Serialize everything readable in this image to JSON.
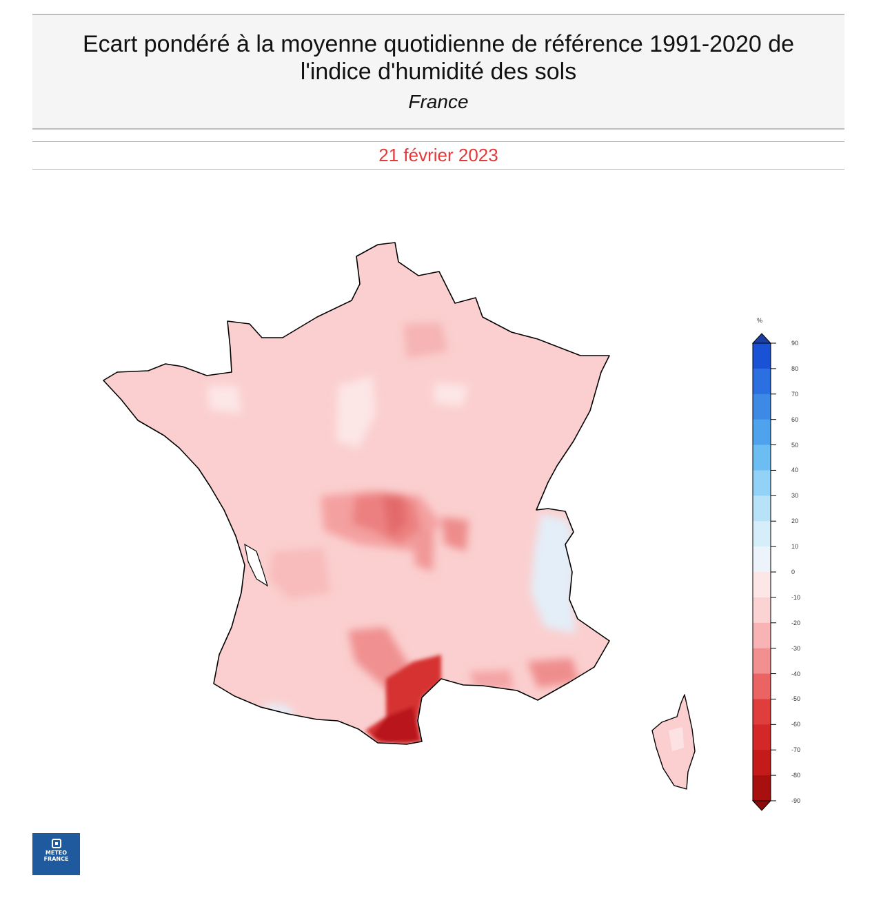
{
  "header": {
    "title": "Ecart pondéré à la moyenne quotidienne de référence 1991-2020 de l'indice d'humidité des sols",
    "region": "France"
  },
  "date": "21 février 2023",
  "legend": {
    "unit": "%",
    "ticks": [
      "90",
      "80",
      "70",
      "60",
      "50",
      "40",
      "30",
      "20",
      "10",
      "0",
      "-10",
      "-20",
      "-30",
      "-40",
      "-50",
      "-60",
      "-70",
      "-80",
      "-90"
    ],
    "colors": [
      "#1a52d6",
      "#2b6fe0",
      "#3d8ae6",
      "#4fa3ec",
      "#6cbef2",
      "#92d2f6",
      "#b8e2f8",
      "#d6eef9",
      "#ecf3fa",
      "#fde6e6",
      "#fbd3d3",
      "#f8b4b4",
      "#f28f8f",
      "#ea6464",
      "#e03d3d",
      "#d42727",
      "#c41a1a",
      "#a80f0f"
    ],
    "top_arrow_color": "#1a3fa0",
    "bottom_arrow_color": "#8c0a0a"
  },
  "map_colors": {
    "base": "#fbcfcf",
    "light": "#fde6e6",
    "medium": "#f6a8a8",
    "strong": "#ec7878",
    "deep": "#d63232",
    "darkest": "#b8141c",
    "positive": "#e3eef8"
  },
  "logo": {
    "line1": "METEO",
    "line2": "FRANCE"
  }
}
